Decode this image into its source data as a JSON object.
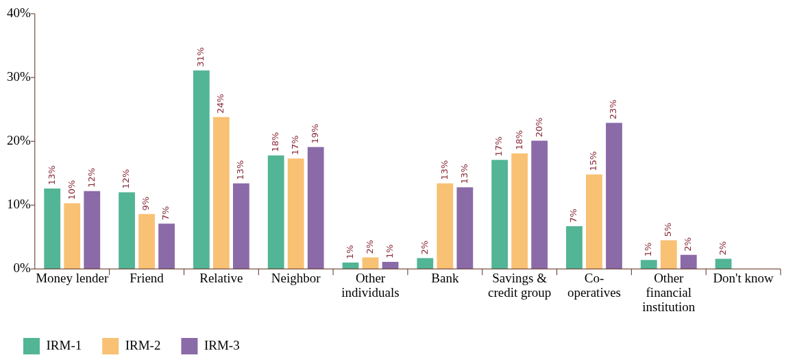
{
  "chart_data": {
    "type": "bar",
    "categories": [
      "Money lender",
      "Friend",
      "Relative",
      "Neighbor",
      "Other individuals",
      "Bank",
      "Savings & credit group",
      "Co-operatives",
      "Other financial institution",
      "Don't know"
    ],
    "series": [
      {
        "name": "IRM-1",
        "color": "#52b595",
        "values": [
          12.6,
          12.0,
          31.1,
          17.8,
          1.0,
          1.7,
          17.1,
          6.7,
          1.4,
          1.6
        ],
        "value_labels": [
          "13%",
          "12%",
          "31%",
          "18%",
          "1%",
          "2%",
          "17%",
          "7%",
          "1%",
          "2%"
        ]
      },
      {
        "name": "IRM-2",
        "color": "#f8c173",
        "values": [
          10.3,
          8.6,
          23.8,
          17.3,
          1.8,
          13.4,
          18.1,
          14.8,
          4.5,
          null
        ],
        "value_labels": [
          "10%",
          "9%",
          "24%",
          "17%",
          "2%",
          "13%",
          "18%",
          "15%",
          "5%",
          null
        ]
      },
      {
        "name": "IRM-3",
        "color": "#8b6aa8",
        "values": [
          12.2,
          7.1,
          13.4,
          19.1,
          1.1,
          12.8,
          20.1,
          22.9,
          2.2,
          null
        ],
        "value_labels": [
          "12%",
          "7%",
          "13%",
          "19%",
          "1%",
          "13%",
          "20%",
          "23%",
          "2%",
          null
        ]
      }
    ],
    "ylim": [
      0,
      40
    ],
    "yticks": [
      {
        "value": 0,
        "label": "0%"
      },
      {
        "value": 10,
        "label": "10%"
      },
      {
        "value": 20,
        "label": "20%"
      },
      {
        "value": 30,
        "label": "30%"
      },
      {
        "value": 40,
        "label": "40%"
      }
    ],
    "grid": false,
    "legend": "bottom left"
  }
}
